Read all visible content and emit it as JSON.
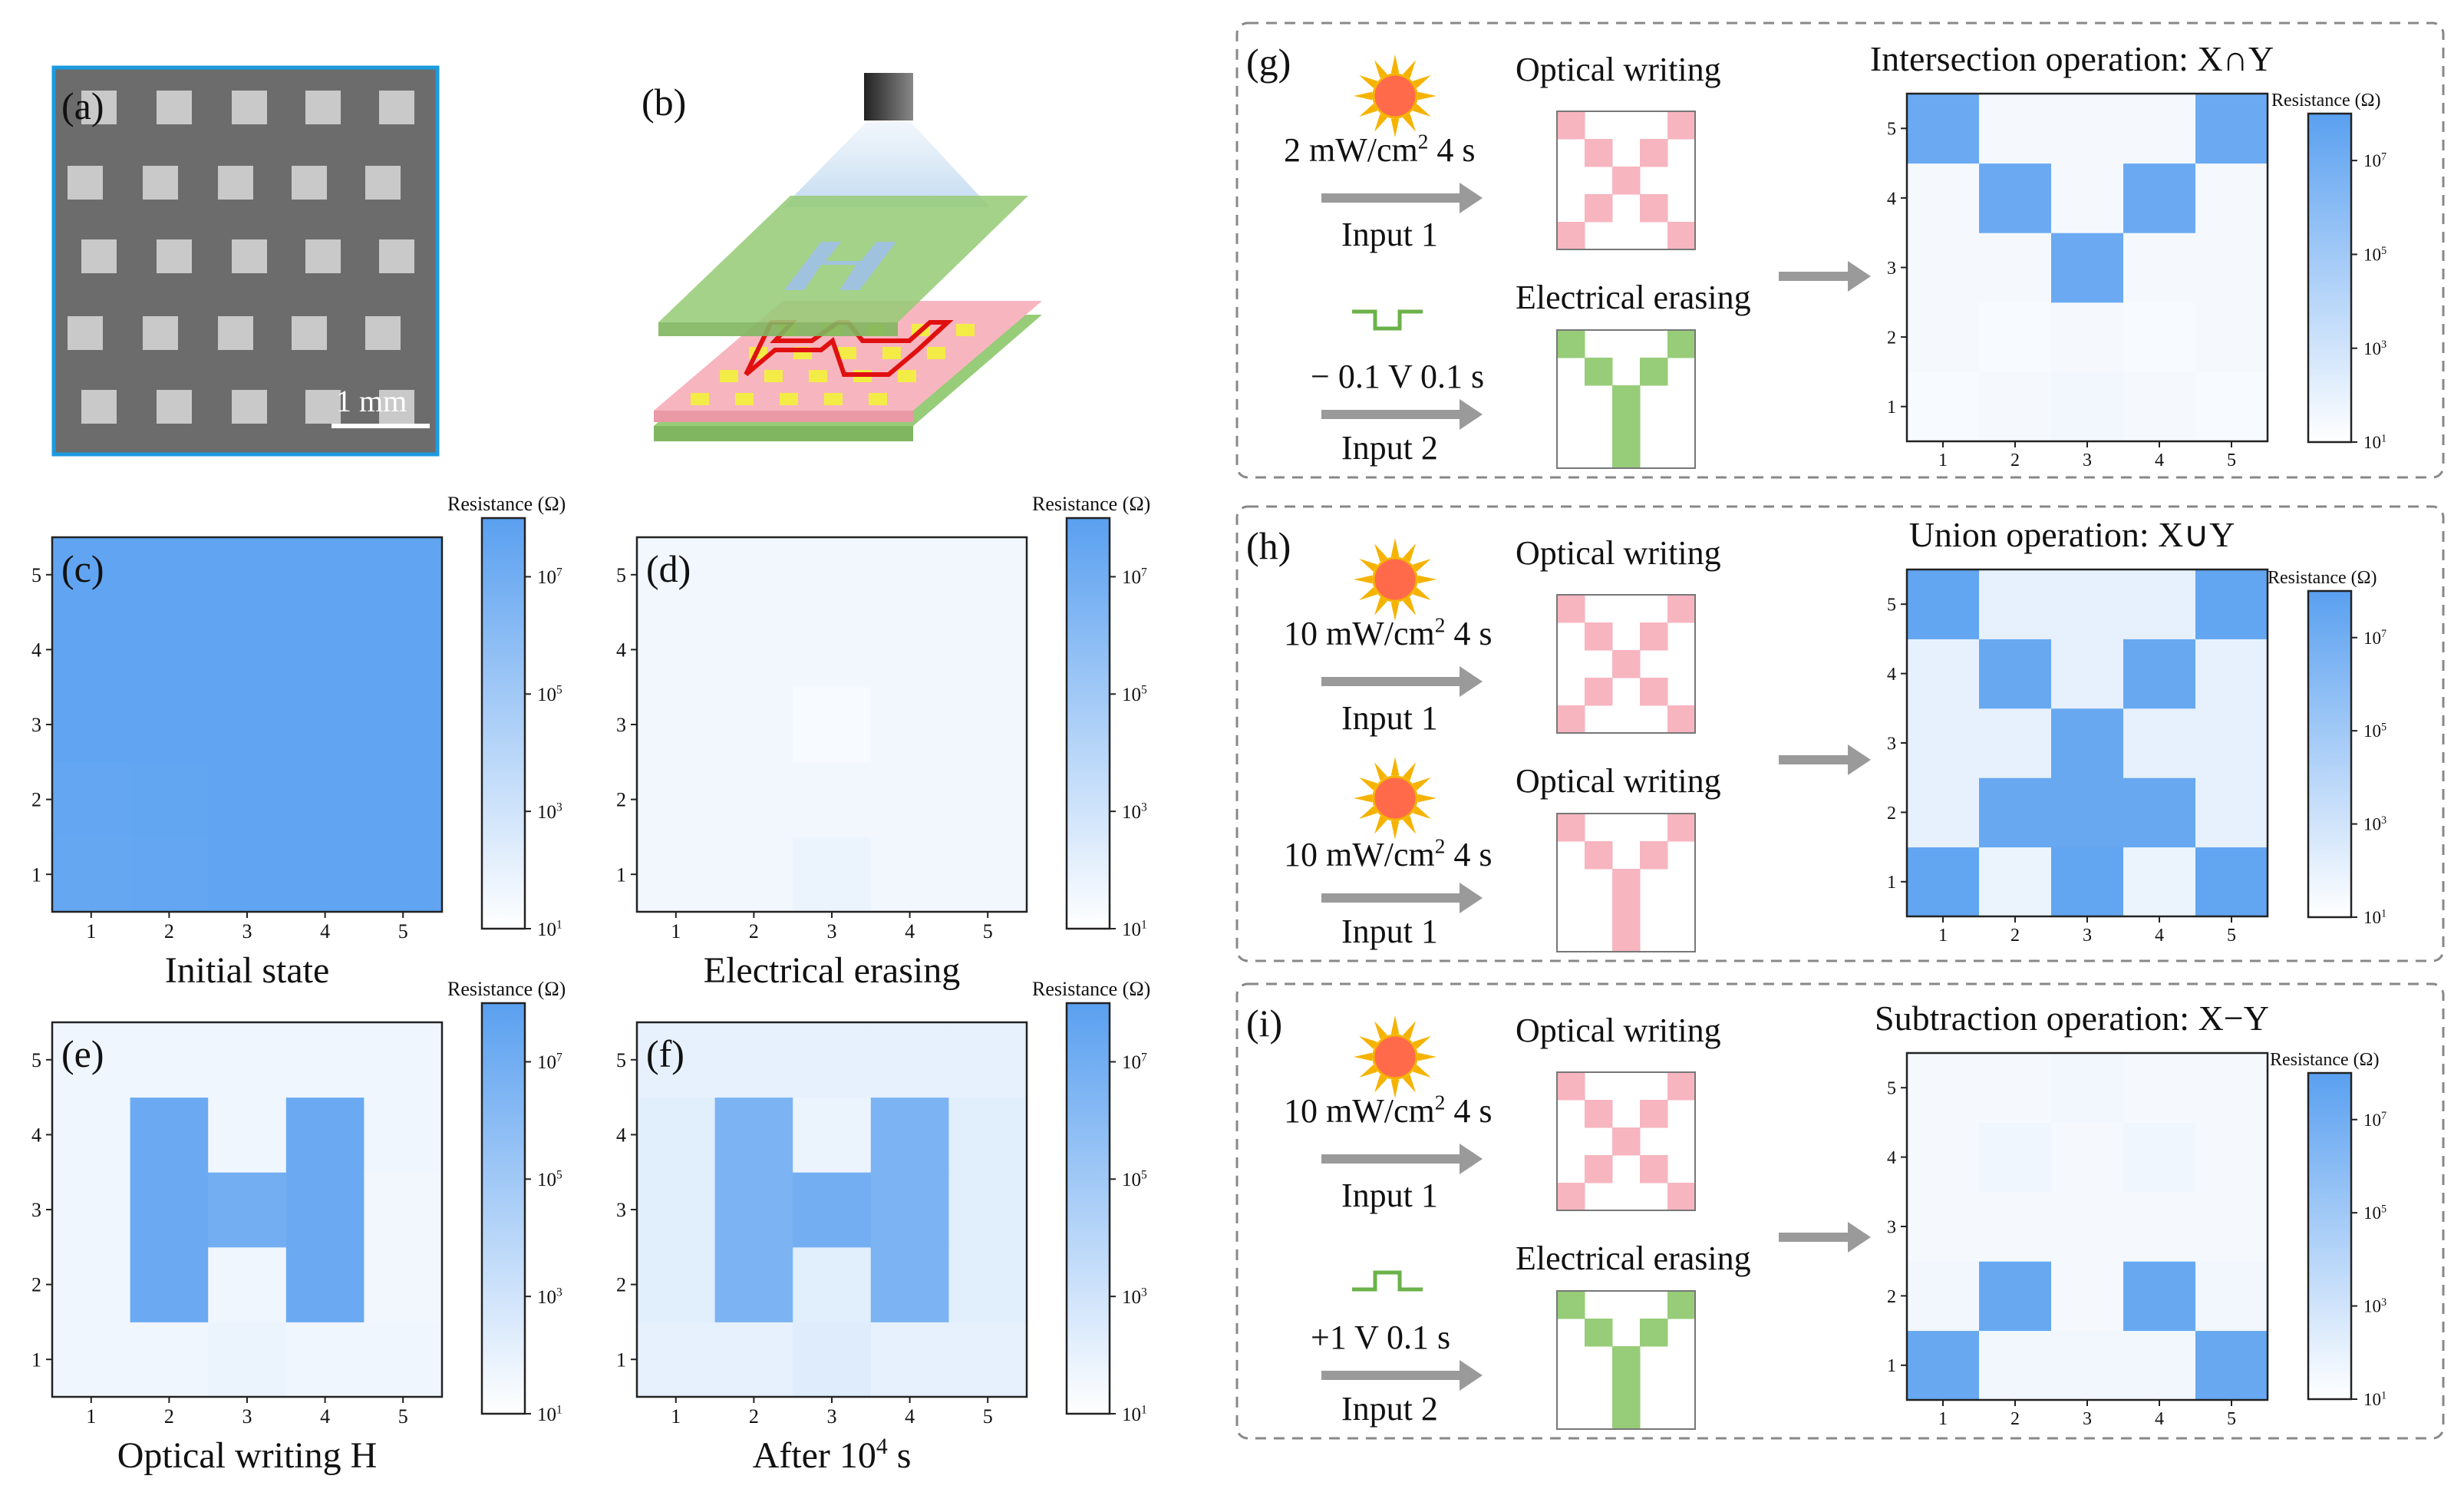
{
  "colors": {
    "cell_min": "#ffffff",
    "cell_max": "#5aa0f0",
    "pink": "#f7b5bf",
    "green": "#97cc78",
    "photo_border": "#1b9be0",
    "sun_core": "#ff6a4a",
    "sun_rays": "#f5b300",
    "arrow": "#9a9a9a",
    "dash_border": "#888888",
    "red_trace": "#e01010"
  },
  "panels": {
    "a": {
      "label": "(a)",
      "scalebar": "1 mm"
    },
    "b": {
      "label": "(b)"
    }
  },
  "colorbar": {
    "title": "Resistance (Ω)",
    "ticks": [
      {
        "base": "10",
        "exp": "1",
        "t": 0.0
      },
      {
        "base": "10",
        "exp": "3",
        "t": 0.2857
      },
      {
        "base": "10",
        "exp": "5",
        "t": 0.5714
      },
      {
        "base": "10",
        "exp": "7",
        "t": 0.8571
      }
    ]
  },
  "chart_data": [
    {
      "id": "c",
      "type": "heatmap",
      "label": "(c)",
      "title": "Initial state",
      "x": [
        "1",
        "2",
        "3",
        "4",
        "5"
      ],
      "y": [
        "1",
        "2",
        "3",
        "4",
        "5"
      ],
      "values": [
        [
          0.93,
          0.94,
          0.96,
          0.96,
          0.96
        ],
        [
          0.94,
          0.95,
          0.96,
          0.96,
          0.96
        ],
        [
          0.96,
          0.96,
          0.96,
          0.96,
          0.96
        ],
        [
          0.96,
          0.96,
          0.96,
          0.96,
          0.96
        ],
        [
          0.96,
          0.96,
          0.96,
          0.96,
          0.96
        ]
      ]
    },
    {
      "id": "d",
      "type": "heatmap",
      "label": "(d)",
      "title": "Electrical erasing",
      "x": [
        "1",
        "2",
        "3",
        "4",
        "5"
      ],
      "y": [
        "1",
        "2",
        "3",
        "4",
        "5"
      ],
      "values": [
        [
          0.08,
          0.08,
          0.12,
          0.08,
          0.08
        ],
        [
          0.08,
          0.08,
          0.08,
          0.08,
          0.08
        ],
        [
          0.08,
          0.08,
          0.05,
          0.08,
          0.08
        ],
        [
          0.08,
          0.08,
          0.08,
          0.08,
          0.08
        ],
        [
          0.08,
          0.08,
          0.08,
          0.08,
          0.08
        ]
      ]
    },
    {
      "id": "e",
      "type": "heatmap",
      "label": "(e)",
      "title": "Optical writing H",
      "x": [
        "1",
        "2",
        "3",
        "4",
        "5"
      ],
      "y": [
        "1",
        "2",
        "3",
        "4",
        "5"
      ],
      "values": [
        [
          0.1,
          0.1,
          0.12,
          0.1,
          0.1
        ],
        [
          0.1,
          0.9,
          0.1,
          0.9,
          0.08
        ],
        [
          0.1,
          0.9,
          0.85,
          0.9,
          0.08
        ],
        [
          0.1,
          0.9,
          0.1,
          0.9,
          0.1
        ],
        [
          0.1,
          0.1,
          0.1,
          0.1,
          0.1
        ]
      ]
    },
    {
      "id": "f",
      "type": "heatmap",
      "label": "(f)",
      "title": "After 10",
      "title_sup": "4",
      "title_suffix": " s",
      "x": [
        "1",
        "2",
        "3",
        "4",
        "5"
      ],
      "y": [
        "1",
        "2",
        "3",
        "4",
        "5"
      ],
      "values": [
        [
          0.15,
          0.15,
          0.2,
          0.15,
          0.15
        ],
        [
          0.18,
          0.8,
          0.18,
          0.8,
          0.18
        ],
        [
          0.18,
          0.8,
          0.85,
          0.8,
          0.18
        ],
        [
          0.18,
          0.8,
          0.12,
          0.8,
          0.18
        ],
        [
          0.15,
          0.15,
          0.15,
          0.15,
          0.15
        ]
      ]
    },
    {
      "id": "g",
      "type": "heatmap",
      "label": "(g)",
      "title": "Intersection operation: X∩Y",
      "x": [
        "1",
        "2",
        "3",
        "4",
        "5"
      ],
      "y": [
        "1",
        "2",
        "3",
        "4",
        "5"
      ],
      "values": [
        [
          0.05,
          0.06,
          0.08,
          0.06,
          0.05
        ],
        [
          0.06,
          0.05,
          0.06,
          0.05,
          0.06
        ],
        [
          0.06,
          0.06,
          0.9,
          0.06,
          0.06
        ],
        [
          0.06,
          0.9,
          0.06,
          0.9,
          0.06
        ],
        [
          0.9,
          0.06,
          0.06,
          0.06,
          0.9
        ]
      ]
    },
    {
      "id": "h",
      "type": "heatmap",
      "label": "(h)",
      "title": "Union operation: X∪Y",
      "x": [
        "1",
        "2",
        "3",
        "4",
        "5"
      ],
      "y": [
        "1",
        "2",
        "3",
        "4",
        "5"
      ],
      "values": [
        [
          0.95,
          0.12,
          0.95,
          0.12,
          0.95
        ],
        [
          0.15,
          0.92,
          0.92,
          0.92,
          0.15
        ],
        [
          0.15,
          0.15,
          0.92,
          0.15,
          0.15
        ],
        [
          0.15,
          0.92,
          0.15,
          0.92,
          0.15
        ],
        [
          0.95,
          0.15,
          0.15,
          0.15,
          0.95
        ]
      ]
    },
    {
      "id": "i",
      "type": "heatmap",
      "label": "(i)",
      "title": "Subtraction operation: X−Y",
      "x": [
        "1",
        "2",
        "3",
        "4",
        "5"
      ],
      "y": [
        "1",
        "2",
        "3",
        "4",
        "5"
      ],
      "values": [
        [
          0.92,
          0.08,
          0.08,
          0.08,
          0.92
        ],
        [
          0.08,
          0.92,
          0.06,
          0.92,
          0.08
        ],
        [
          0.06,
          0.06,
          0.06,
          0.06,
          0.06
        ],
        [
          0.06,
          0.1,
          0.06,
          0.1,
          0.06
        ],
        [
          0.06,
          0.06,
          0.08,
          0.06,
          0.06
        ]
      ]
    }
  ],
  "operations": {
    "g": {
      "input1": {
        "writing": "Optical writing",
        "param": "2 mW/cm",
        "param_sup": "2",
        "param_suffix": "  4 s",
        "input": "Input 1",
        "pattern": "X",
        "color": "pink"
      },
      "input2": {
        "writing": "Electrical erasing",
        "param": "− 0.1 V 0.1 s",
        "input": "Input 2",
        "pattern": "Y",
        "color": "green",
        "pulse": "negative"
      }
    },
    "h": {
      "input1": {
        "writing": "Optical writing",
        "param": "10 mW/cm",
        "param_sup": "2",
        "param_suffix": "  4 s",
        "input": "Input 1",
        "pattern": "X",
        "color": "pink"
      },
      "input2": {
        "writing": "Optical writing",
        "param": "10 mW/cm",
        "param_sup": "2",
        "param_suffix": "  4 s",
        "input": "Input 1",
        "pattern": "Y",
        "color": "pink"
      }
    },
    "i": {
      "input1": {
        "writing": "Optical writing",
        "param": "10 mW/cm",
        "param_sup": "2",
        "param_suffix": "  4 s",
        "input": "Input 1",
        "pattern": "X",
        "color": "pink"
      },
      "input2": {
        "writing": "Electrical erasing",
        "param": "+1 V  0.1 s",
        "input": "Input 2",
        "pattern": "Y",
        "color": "green",
        "pulse": "positive"
      }
    }
  }
}
